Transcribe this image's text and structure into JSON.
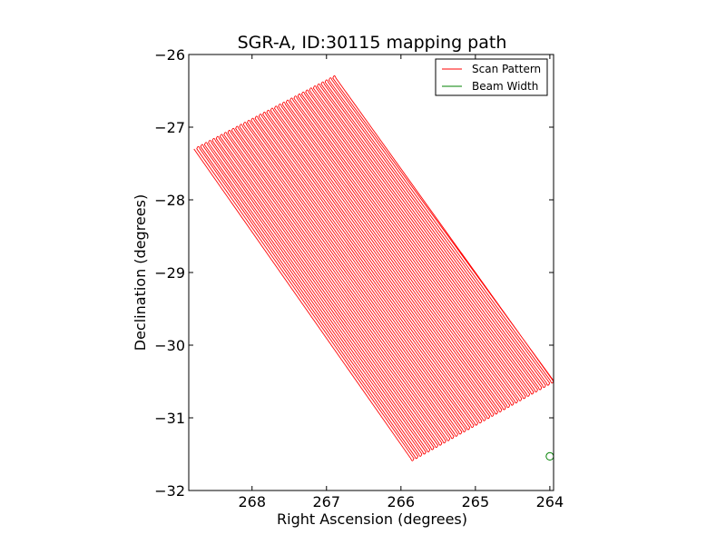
{
  "chart_data": {
    "type": "line",
    "title": "SGR-A, ID:30115 mapping path",
    "xlabel": "Right Ascension (degrees)",
    "ylabel": "Declination (degrees)",
    "xlim": [
      268.85,
      263.95
    ],
    "ylim": [
      -32,
      -26
    ],
    "x_ticks": [
      268,
      267,
      266,
      265,
      264
    ],
    "y_ticks": [
      -26,
      -27,
      -28,
      -29,
      -30,
      -31,
      -32
    ],
    "x_tick_labels": [
      "268",
      "267",
      "266",
      "265",
      "264"
    ],
    "y_tick_labels": [
      "−26",
      "−27",
      "−28",
      "−29",
      "−30",
      "−31",
      "−32"
    ],
    "grid": false,
    "legend_position": "top-right",
    "series": [
      {
        "name": "Scan Pattern",
        "kind": "scan_raster",
        "color": "#ff0000",
        "corners": {
          "top_left": [
            268.78,
            -27.3
          ],
          "top_right": [
            266.9,
            -26.3
          ],
          "bottom_left": [
            265.88,
            -31.6
          ],
          "bottom_right": [
            263.95,
            -30.5
          ]
        },
        "legs": 36
      },
      {
        "name": "Beam Width",
        "kind": "circle",
        "color": "#008000",
        "center": [
          264.0,
          -31.53
        ],
        "diameter_deg": 0.1
      }
    ]
  }
}
